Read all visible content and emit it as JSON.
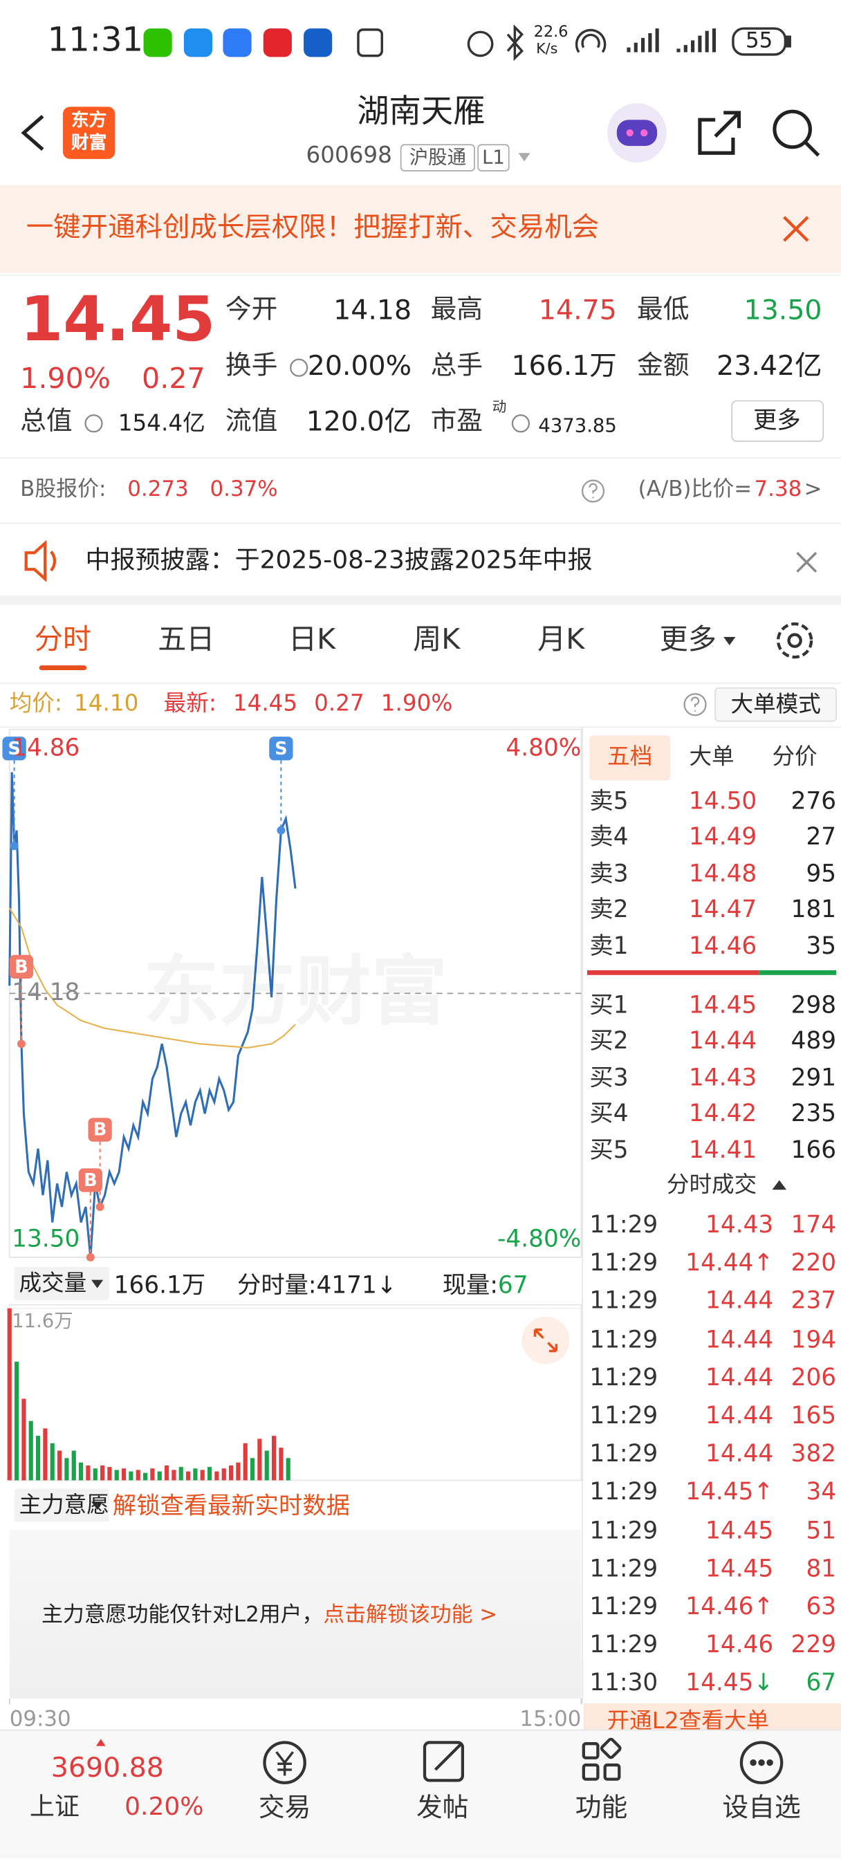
{
  "status_bar": {
    "time": "11:31",
    "net_speed": "22.6",
    "net_unit": "K/s",
    "battery": "55"
  },
  "header": {
    "logo": [
      "东方",
      "财富"
    ],
    "title": "湖南天雁",
    "code": "600698",
    "tags": [
      "沪股通",
      "L1"
    ]
  },
  "banner": {
    "text": "一键开通科创成长层权限！把握打新、交易机会"
  },
  "quote": {
    "price": "14.45",
    "change_pct": "1.90%",
    "change": "0.27",
    "stats": [
      [
        {
          "label": "今开",
          "value": "14.18"
        },
        {
          "label": "最高",
          "value": "14.75",
          "color": "#e23b3b"
        },
        {
          "label": "最低",
          "value": "13.50",
          "color": "#17a34a"
        }
      ],
      [
        {
          "label": "换手",
          "value": "20.00%"
        },
        {
          "label": "总手",
          "value": "166.1万"
        },
        {
          "label": "金额",
          "value": "23.42亿"
        }
      ],
      [
        {
          "label": "总值",
          "value": "154.4亿"
        },
        {
          "label": "流值",
          "value": "120.0亿"
        },
        {
          "label": "市盈",
          "sup": "动",
          "value": "4373.85"
        }
      ]
    ],
    "more": "更多"
  },
  "b_share": {
    "label": "B股报价:",
    "price": "0.273",
    "pct": "0.37%",
    "ratio_label": "(A/B)比价=",
    "ratio": "7.38",
    "arrow": ">"
  },
  "notice": {
    "text": "中报预披露：于2025-08-23披露2025年中报"
  },
  "tabs": {
    "items": [
      "分时",
      "五日",
      "日K",
      "周K",
      "月K",
      "更多"
    ],
    "active": 0
  },
  "info_line": {
    "avg_label": "均价:",
    "avg": "14.10",
    "latest_label": "最新:",
    "latest": "14.45",
    "change": "0.27",
    "pct": "1.90%",
    "mode_button": "大单模式"
  },
  "chart_data": [
    {
      "type": "line",
      "watermark": "东方财富",
      "xlim": [
        0,
        240
      ],
      "xticks": [
        {
          "value": 0,
          "label": "09:30"
        },
        {
          "value": 240,
          "label": "15:00"
        }
      ],
      "ylim": [
        13.5,
        14.86
      ],
      "yticks": [
        {
          "value": 13.5,
          "label": "13.50"
        },
        {
          "value": 14.18,
          "label": "14.18"
        },
        14.86
      ],
      "y2lim": [
        -4.8,
        4.8
      ],
      "y2ticks": [
        {
          "value": -4.8,
          "label": "-4.80%"
        },
        {
          "value": 4.8,
          "label": "4.80%"
        }
      ],
      "series": [
        {
          "color": "#2f6db5",
          "x": [
            0,
            1,
            2,
            3,
            4,
            5,
            6,
            8,
            10,
            12,
            14,
            16,
            18,
            20,
            22,
            24,
            26,
            28,
            30,
            32,
            34,
            36,
            38,
            40,
            42,
            44,
            46,
            48,
            50,
            52,
            54,
            56,
            58,
            60,
            62,
            64,
            66,
            68,
            70,
            72,
            74,
            76,
            78,
            80,
            82,
            84,
            86,
            88,
            90,
            92,
            94,
            96,
            98,
            100,
            102,
            104,
            106,
            108,
            110,
            112,
            114,
            116,
            118,
            120
          ],
          "values": [
            14.2,
            14.75,
            14.56,
            14.6,
            14.42,
            14.05,
            13.87,
            13.72,
            13.69,
            13.78,
            13.66,
            13.75,
            13.59,
            13.69,
            13.63,
            13.72,
            13.66,
            13.69,
            13.59,
            13.63,
            13.5,
            13.69,
            13.63,
            13.66,
            13.72,
            13.69,
            13.72,
            13.81,
            13.78,
            13.84,
            13.81,
            13.9,
            13.87,
            13.96,
            13.99,
            14.05,
            13.99,
            13.9,
            13.81,
            13.87,
            13.9,
            13.84,
            13.9,
            13.93,
            13.87,
            13.93,
            13.9,
            13.96,
            13.93,
            13.88,
            13.9,
            14.02,
            14.05,
            14.08,
            14.14,
            14.3,
            14.48,
            14.33,
            14.17,
            14.42,
            14.6,
            14.63,
            14.55,
            14.45
          ]
        },
        {
          "color": "#e8b04a",
          "x": [
            0,
            5,
            10,
            15,
            20,
            30,
            40,
            60,
            80,
            100,
            110,
            115,
            120
          ],
          "values": [
            14.4,
            14.35,
            14.25,
            14.19,
            14.15,
            14.11,
            14.09,
            14.07,
            14.05,
            14.04,
            14.05,
            14.07,
            14.1
          ]
        }
      ],
      "markers": [
        {
          "label": "S",
          "x": 2,
          "value": 14.56,
          "color": "#4a90e2"
        },
        {
          "label": "B",
          "x": 5,
          "value": 14.05,
          "color": "#f07b6b"
        },
        {
          "label": "B",
          "x": 34,
          "value": 13.5,
          "color": "#f07b6b"
        },
        {
          "label": "B",
          "x": 38,
          "value": 13.63,
          "color": "#f07b6b"
        },
        {
          "label": "S",
          "x": 114,
          "value": 14.6,
          "color": "#4a90e2"
        }
      ]
    },
    {
      "type": "bar",
      "xlim": [
        0,
        240
      ],
      "ylim": [
        0,
        11.6
      ],
      "yticks": [
        {
          "value": 11.6,
          "label": "11.6万"
        }
      ],
      "x": [
        0,
        3,
        6,
        9,
        12,
        15,
        18,
        21,
        24,
        27,
        30,
        33,
        36,
        39,
        42,
        45,
        48,
        51,
        54,
        57,
        60,
        63,
        66,
        69,
        72,
        75,
        78,
        81,
        84,
        87,
        90,
        93,
        96,
        99,
        102,
        105,
        108,
        111,
        114,
        117
      ],
      "values": [
        11.6,
        8,
        5.5,
        4,
        3,
        3.5,
        2.5,
        2,
        1.5,
        2,
        1.2,
        1,
        0.8,
        1,
        0.9,
        0.7,
        0.8,
        0.6,
        0.7,
        0.5,
        0.8,
        0.6,
        1,
        0.7,
        0.9,
        0.6,
        0.8,
        0.7,
        0.9,
        0.6,
        0.8,
        1,
        1.2,
        2.5,
        1.5,
        2.8,
        2,
        3,
        2.2,
        1.5
      ],
      "colors": [
        "#e23b3b",
        "#1aa34a",
        "#e23b3b",
        "#1aa34a",
        "#1aa34a",
        "#e23b3b",
        "#1aa34a",
        "#e23b3b",
        "#1aa34a",
        "#1aa34a",
        "#1aa34a",
        "#e23b3b",
        "#1aa34a",
        "#e23b3b",
        "#e23b3b",
        "#1aa34a",
        "#e23b3b",
        "#1aa34a",
        "#e23b3b",
        "#1aa34a",
        "#e23b3b",
        "#1aa34a",
        "#e23b3b",
        "#e23b3b",
        "#1aa34a",
        "#e23b3b",
        "#1aa34a",
        "#e23b3b",
        "#1aa34a",
        "#e23b3b",
        "#e23b3b",
        "#e23b3b",
        "#e23b3b",
        "#e23b3b",
        "#1aa34a",
        "#e23b3b",
        "#1aa34a",
        "#e23b3b",
        "#e23b3b",
        "#1aa34a"
      ]
    }
  ],
  "volume_header": {
    "label": "成交量",
    "total": "166.1万",
    "tick_label": "分时量:",
    "tick_vol": "4171",
    "tick_arrow": "↓",
    "now_label": "现量:",
    "now_vol": "67"
  },
  "main_force": {
    "label": "主力意愿",
    "unlock": "解锁查看最新实时数据",
    "message": "主力意愿功能仅针对L2用户，",
    "link": "点击解锁该功能 >"
  },
  "order_book": {
    "tabs": [
      "五档",
      "大单",
      "分价"
    ],
    "asks": [
      {
        "label": "卖5",
        "price": "14.50",
        "volume": "276"
      },
      {
        "label": "卖4",
        "price": "14.49",
        "volume": "27"
      },
      {
        "label": "卖3",
        "price": "14.48",
        "volume": "95"
      },
      {
        "label": "卖2",
        "price": "14.47",
        "volume": "181"
      },
      {
        "label": "卖1",
        "price": "14.46",
        "volume": "35"
      }
    ],
    "bids": [
      {
        "label": "买1",
        "price": "14.45",
        "volume": "298"
      },
      {
        "label": "买2",
        "price": "14.44",
        "volume": "489"
      },
      {
        "label": "买3",
        "price": "14.43",
        "volume": "291"
      },
      {
        "label": "买4",
        "price": "14.42",
        "volume": "235"
      },
      {
        "label": "买5",
        "price": "14.41",
        "volume": "166"
      }
    ]
  },
  "trades": {
    "title": "分时成交",
    "rows": [
      {
        "time": "11:29",
        "price": "14.43",
        "volume": "174",
        "color": "#e23b3b"
      },
      {
        "time": "11:29",
        "price": "14.44",
        "arrow": "↑",
        "volume": "220",
        "color": "#e23b3b"
      },
      {
        "time": "11:29",
        "price": "14.44",
        "volume": "237",
        "color": "#e23b3b"
      },
      {
        "time": "11:29",
        "price": "14.44",
        "volume": "194",
        "color": "#e23b3b"
      },
      {
        "time": "11:29",
        "price": "14.44",
        "volume": "206",
        "color": "#e23b3b"
      },
      {
        "time": "11:29",
        "price": "14.44",
        "volume": "165",
        "color": "#e23b3b"
      },
      {
        "time": "11:29",
        "price": "14.44",
        "volume": "382",
        "color": "#e23b3b"
      },
      {
        "time": "11:29",
        "price": "14.45",
        "arrow": "↑",
        "volume": "34",
        "color": "#e23b3b"
      },
      {
        "time": "11:29",
        "price": "14.45",
        "volume": "51",
        "color": "#e23b3b"
      },
      {
        "time": "11:29",
        "price": "14.45",
        "volume": "81",
        "color": "#e23b3b"
      },
      {
        "time": "11:29",
        "price": "14.46",
        "arrow": "↑",
        "volume": "63",
        "color": "#e23b3b"
      },
      {
        "time": "11:29",
        "price": "14.46",
        "volume": "229",
        "color": "#e23b3b"
      },
      {
        "time": "11:30",
        "price": "14.45",
        "arrow": "↓",
        "volume": "67",
        "color": "#1aa34a"
      }
    ],
    "footer": "开通L2查看大单"
  },
  "bottom_nav": {
    "index_value": "3690.88",
    "index_name": "上证",
    "index_pct": "0.20%",
    "items": [
      "交易",
      "发帖",
      "功能",
      "设自选"
    ]
  }
}
